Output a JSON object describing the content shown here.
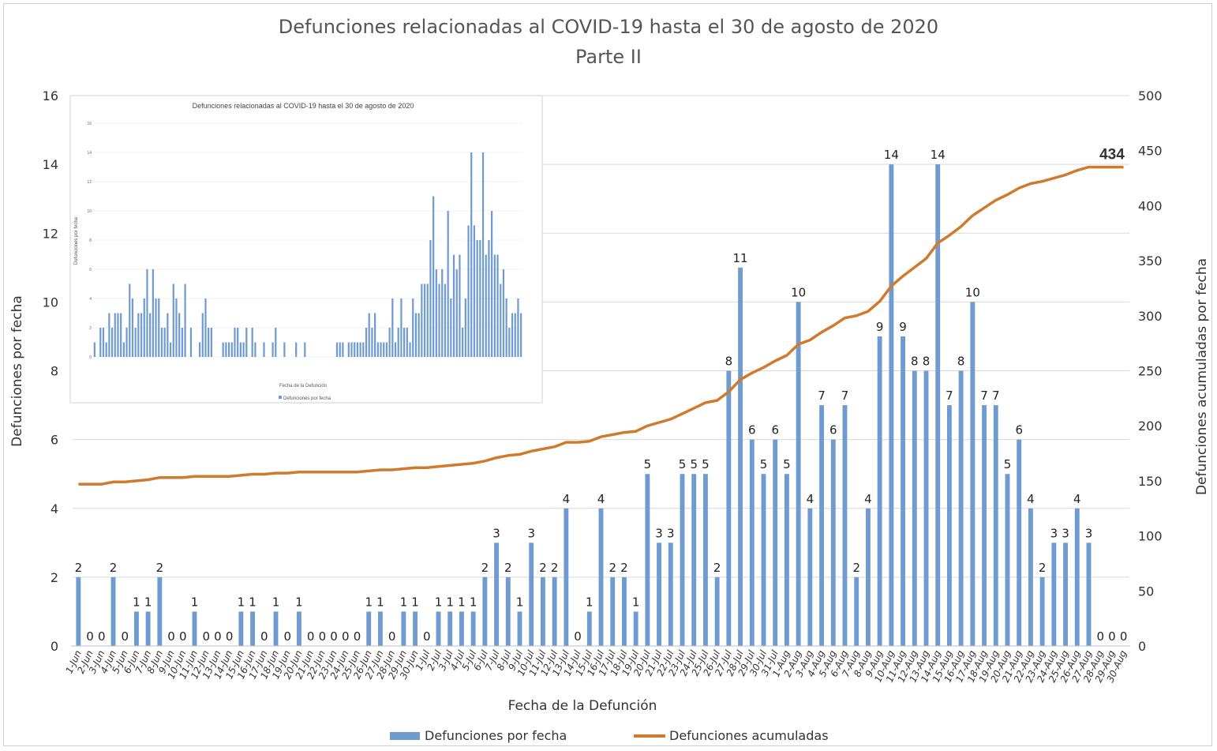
{
  "chart_data": {
    "type": "bar+line",
    "title": "Defunciones relacionadas al COVID-19 hasta el 30 de agosto de 2020",
    "subtitle": "Parte II",
    "xlabel": "Fecha de la Defunción",
    "ylabel_left": "Defunciones por fecha",
    "ylabel_right": "Defunciones acumuladas por fecha",
    "ylim_left": [
      0,
      16
    ],
    "ylim_right": [
      0,
      500
    ],
    "yticks_left": [
      0,
      2,
      4,
      6,
      8,
      10,
      12,
      14,
      16
    ],
    "yticks_right": [
      0,
      50,
      100,
      150,
      200,
      250,
      300,
      350,
      400,
      450,
      500
    ],
    "grid": "horizontal",
    "legend_position": "bottom",
    "colors": {
      "bars": "#6f9bd1",
      "line": "#d07a2b"
    },
    "categories": [
      "1-Jun",
      "2-Jun",
      "3-Jun",
      "4-Jun",
      "5-Jun",
      "6-Jun",
      "7-Jun",
      "8-Jun",
      "9-Jun",
      "10-Jun",
      "11-Jun",
      "12-Jun",
      "13-Jun",
      "14-Jun",
      "15-Jun",
      "16-Jun",
      "17-Jun",
      "18-Jun",
      "19-Jun",
      "20-Jun",
      "21-Jun",
      "22-Jun",
      "23-Jun",
      "24-Jun",
      "25-Jun",
      "26-Jun",
      "27-Jun",
      "28-Jun",
      "29-Jun",
      "30-Jun",
      "1-Jul",
      "2-Jul",
      "3-Jul",
      "4-Jul",
      "5-Jul",
      "6-Jul",
      "7-Jul",
      "8-Jul",
      "9-Jul",
      "10-Jul",
      "11-Jul",
      "12-Jul",
      "13-Jul",
      "14-Jul",
      "15-Jul",
      "16-Jul",
      "17-Jul",
      "18-Jul",
      "19-Jul",
      "20-Jul",
      "21-Jul",
      "22-Jul",
      "23-Jul",
      "24-Jul",
      "25-Jul",
      "26-Jul",
      "27-Jul",
      "28-Jul",
      "29-Jul",
      "30-Jul",
      "31-Jul",
      "1-Aug",
      "2-Aug",
      "3-Aug",
      "4-Aug",
      "5-Aug",
      "6-Aug",
      "7-Aug",
      "8-Aug",
      "9-Aug",
      "10-Aug",
      "11-Aug",
      "12-Aug",
      "13-Aug",
      "14-Aug",
      "15-Aug",
      "16-Aug",
      "17-Aug",
      "18-Aug",
      "19-Aug",
      "20-Aug",
      "21-Aug",
      "22-Aug",
      "23-Aug",
      "24-Aug",
      "25-Aug",
      "26-Aug",
      "27-Aug",
      "28-Aug",
      "29-Aug",
      "30-Aug"
    ],
    "series": [
      {
        "name": "Defunciones por fecha",
        "axis": "left",
        "values": [
          2,
          0,
          0,
          2,
          0,
          1,
          1,
          2,
          0,
          0,
          1,
          0,
          0,
          0,
          1,
          1,
          0,
          1,
          0,
          1,
          0,
          0,
          0,
          0,
          0,
          1,
          1,
          0,
          1,
          1,
          0,
          1,
          1,
          1,
          1,
          2,
          3,
          2,
          1,
          3,
          2,
          2,
          4,
          0,
          1,
          4,
          2,
          2,
          1,
          5,
          3,
          3,
          5,
          5,
          5,
          2,
          8,
          11,
          6,
          5,
          6,
          5,
          10,
          4,
          7,
          6,
          7,
          2,
          4,
          9,
          14,
          9,
          8,
          8,
          14,
          7,
          8,
          10,
          7,
          7,
          5,
          6,
          4,
          2,
          3,
          3,
          4,
          3,
          0,
          0,
          0
        ]
      },
      {
        "name": "Defunciones acumuladas",
        "axis": "right",
        "start": 145,
        "end_label": "434"
      }
    ],
    "inset": {
      "title": "Defunciones relacionadas al COVID-19 hasta el 30 de agosto de 2020",
      "xlabel": "Fecha de la Defunción",
      "ylabel": "Defunciones por fecha",
      "legend": "Defunciones por fecha",
      "yticks": [
        0,
        2,
        4,
        6,
        8,
        10,
        12,
        14,
        16
      ],
      "values": [
        1,
        0,
        2,
        2,
        1,
        3,
        2,
        3,
        3,
        3,
        1,
        2,
        5,
        4,
        2,
        3,
        3,
        4,
        6,
        3,
        6,
        4,
        4,
        2,
        2,
        3,
        1,
        5,
        4,
        3,
        2,
        5,
        0,
        2,
        0,
        0,
        1,
        3,
        4,
        2,
        2,
        0,
        0,
        0,
        1,
        1,
        1,
        1,
        2,
        2,
        1,
        1,
        2,
        0,
        2,
        1,
        0,
        0,
        1,
        0,
        0,
        1,
        2,
        0,
        0,
        1,
        0,
        0,
        0,
        1,
        0,
        0,
        1,
        0,
        0,
        0,
        0,
        0,
        0,
        0,
        0,
        0,
        0,
        1,
        1,
        1,
        0,
        1,
        1,
        1,
        1,
        1,
        1,
        2,
        3,
        2,
        3,
        1,
        1,
        1,
        1,
        2,
        4,
        1,
        2,
        4,
        2,
        2,
        1,
        4,
        3,
        3,
        5,
        5,
        5,
        8,
        11,
        6,
        5,
        6,
        5,
        10,
        4,
        7,
        6,
        7,
        2,
        4,
        9,
        14,
        9,
        8,
        8,
        14,
        7,
        8,
        10,
        7,
        7,
        5,
        6,
        4,
        2,
        3,
        3,
        4,
        3
      ]
    }
  },
  "legend": {
    "bars_label": "Defunciones por fecha",
    "line_label": "Defunciones acumuladas"
  }
}
